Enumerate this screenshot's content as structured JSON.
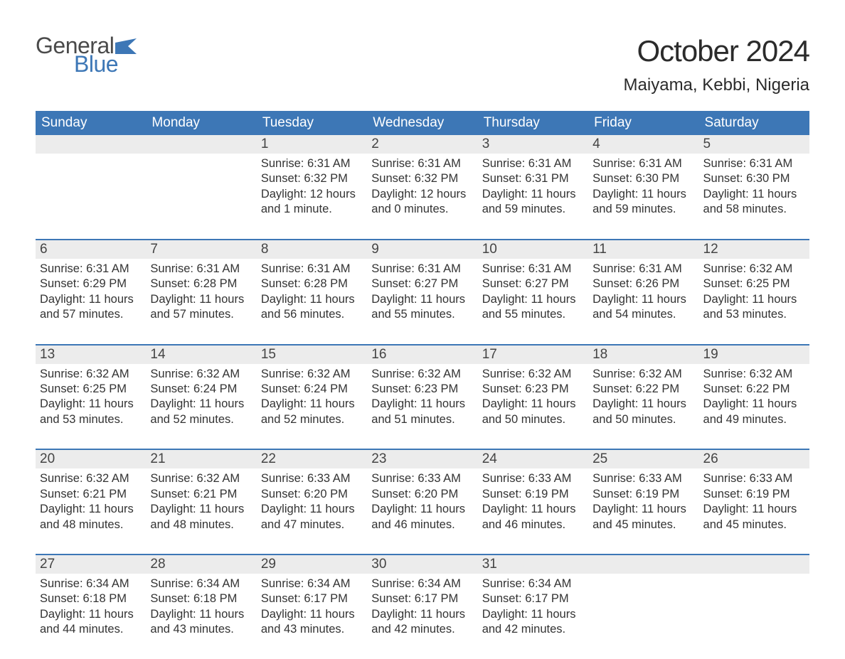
{
  "logo": {
    "general": "General",
    "blue": "Blue",
    "flag_color": "#3d77b6"
  },
  "title": "October 2024",
  "location": "Maiyama, Kebbi, Nigeria",
  "colors": {
    "header_bg": "#3d77b6",
    "header_text": "#ffffff",
    "date_bar_bg": "#ececec",
    "row_border": "#3d77b6",
    "body_text": "#333333",
    "page_bg": "#ffffff"
  },
  "typography": {
    "title_fontsize": 42,
    "location_fontsize": 24,
    "header_fontsize": 19,
    "date_fontsize": 19,
    "body_fontsize": 16.5
  },
  "day_names": [
    "Sunday",
    "Monday",
    "Tuesday",
    "Wednesday",
    "Thursday",
    "Friday",
    "Saturday"
  ],
  "weeks": [
    [
      {
        "date": "",
        "lines": []
      },
      {
        "date": "",
        "lines": []
      },
      {
        "date": "1",
        "lines": [
          "Sunrise: 6:31 AM",
          "Sunset: 6:32 PM",
          "Daylight: 12 hours and 1 minute."
        ]
      },
      {
        "date": "2",
        "lines": [
          "Sunrise: 6:31 AM",
          "Sunset: 6:32 PM",
          "Daylight: 12 hours and 0 minutes."
        ]
      },
      {
        "date": "3",
        "lines": [
          "Sunrise: 6:31 AM",
          "Sunset: 6:31 PM",
          "Daylight: 11 hours and 59 minutes."
        ]
      },
      {
        "date": "4",
        "lines": [
          "Sunrise: 6:31 AM",
          "Sunset: 6:30 PM",
          "Daylight: 11 hours and 59 minutes."
        ]
      },
      {
        "date": "5",
        "lines": [
          "Sunrise: 6:31 AM",
          "Sunset: 6:30 PM",
          "Daylight: 11 hours and 58 minutes."
        ]
      }
    ],
    [
      {
        "date": "6",
        "lines": [
          "Sunrise: 6:31 AM",
          "Sunset: 6:29 PM",
          "Daylight: 11 hours and 57 minutes."
        ]
      },
      {
        "date": "7",
        "lines": [
          "Sunrise: 6:31 AM",
          "Sunset: 6:28 PM",
          "Daylight: 11 hours and 57 minutes."
        ]
      },
      {
        "date": "8",
        "lines": [
          "Sunrise: 6:31 AM",
          "Sunset: 6:28 PM",
          "Daylight: 11 hours and 56 minutes."
        ]
      },
      {
        "date": "9",
        "lines": [
          "Sunrise: 6:31 AM",
          "Sunset: 6:27 PM",
          "Daylight: 11 hours and 55 minutes."
        ]
      },
      {
        "date": "10",
        "lines": [
          "Sunrise: 6:31 AM",
          "Sunset: 6:27 PM",
          "Daylight: 11 hours and 55 minutes."
        ]
      },
      {
        "date": "11",
        "lines": [
          "Sunrise: 6:31 AM",
          "Sunset: 6:26 PM",
          "Daylight: 11 hours and 54 minutes."
        ]
      },
      {
        "date": "12",
        "lines": [
          "Sunrise: 6:32 AM",
          "Sunset: 6:25 PM",
          "Daylight: 11 hours and 53 minutes."
        ]
      }
    ],
    [
      {
        "date": "13",
        "lines": [
          "Sunrise: 6:32 AM",
          "Sunset: 6:25 PM",
          "Daylight: 11 hours and 53 minutes."
        ]
      },
      {
        "date": "14",
        "lines": [
          "Sunrise: 6:32 AM",
          "Sunset: 6:24 PM",
          "Daylight: 11 hours and 52 minutes."
        ]
      },
      {
        "date": "15",
        "lines": [
          "Sunrise: 6:32 AM",
          "Sunset: 6:24 PM",
          "Daylight: 11 hours and 52 minutes."
        ]
      },
      {
        "date": "16",
        "lines": [
          "Sunrise: 6:32 AM",
          "Sunset: 6:23 PM",
          "Daylight: 11 hours and 51 minutes."
        ]
      },
      {
        "date": "17",
        "lines": [
          "Sunrise: 6:32 AM",
          "Sunset: 6:23 PM",
          "Daylight: 11 hours and 50 minutes."
        ]
      },
      {
        "date": "18",
        "lines": [
          "Sunrise: 6:32 AM",
          "Sunset: 6:22 PM",
          "Daylight: 11 hours and 50 minutes."
        ]
      },
      {
        "date": "19",
        "lines": [
          "Sunrise: 6:32 AM",
          "Sunset: 6:22 PM",
          "Daylight: 11 hours and 49 minutes."
        ]
      }
    ],
    [
      {
        "date": "20",
        "lines": [
          "Sunrise: 6:32 AM",
          "Sunset: 6:21 PM",
          "Daylight: 11 hours and 48 minutes."
        ]
      },
      {
        "date": "21",
        "lines": [
          "Sunrise: 6:32 AM",
          "Sunset: 6:21 PM",
          "Daylight: 11 hours and 48 minutes."
        ]
      },
      {
        "date": "22",
        "lines": [
          "Sunrise: 6:33 AM",
          "Sunset: 6:20 PM",
          "Daylight: 11 hours and 47 minutes."
        ]
      },
      {
        "date": "23",
        "lines": [
          "Sunrise: 6:33 AM",
          "Sunset: 6:20 PM",
          "Daylight: 11 hours and 46 minutes."
        ]
      },
      {
        "date": "24",
        "lines": [
          "Sunrise: 6:33 AM",
          "Sunset: 6:19 PM",
          "Daylight: 11 hours and 46 minutes."
        ]
      },
      {
        "date": "25",
        "lines": [
          "Sunrise: 6:33 AM",
          "Sunset: 6:19 PM",
          "Daylight: 11 hours and 45 minutes."
        ]
      },
      {
        "date": "26",
        "lines": [
          "Sunrise: 6:33 AM",
          "Sunset: 6:19 PM",
          "Daylight: 11 hours and 45 minutes."
        ]
      }
    ],
    [
      {
        "date": "27",
        "lines": [
          "Sunrise: 6:34 AM",
          "Sunset: 6:18 PM",
          "Daylight: 11 hours and 44 minutes."
        ]
      },
      {
        "date": "28",
        "lines": [
          "Sunrise: 6:34 AM",
          "Sunset: 6:18 PM",
          "Daylight: 11 hours and 43 minutes."
        ]
      },
      {
        "date": "29",
        "lines": [
          "Sunrise: 6:34 AM",
          "Sunset: 6:17 PM",
          "Daylight: 11 hours and 43 minutes."
        ]
      },
      {
        "date": "30",
        "lines": [
          "Sunrise: 6:34 AM",
          "Sunset: 6:17 PM",
          "Daylight: 11 hours and 42 minutes."
        ]
      },
      {
        "date": "31",
        "lines": [
          "Sunrise: 6:34 AM",
          "Sunset: 6:17 PM",
          "Daylight: 11 hours and 42 minutes."
        ]
      },
      {
        "date": "",
        "lines": []
      },
      {
        "date": "",
        "lines": []
      }
    ]
  ]
}
